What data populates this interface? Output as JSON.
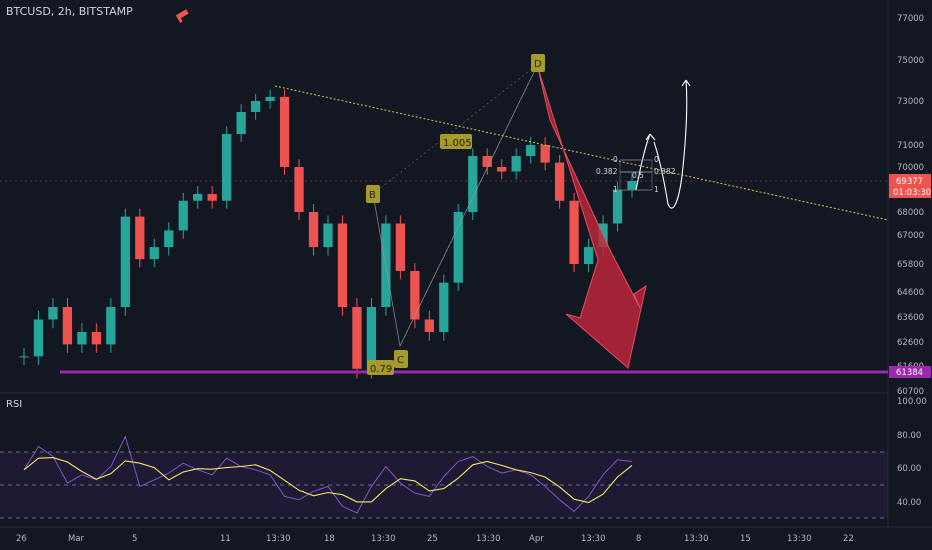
{
  "header": {
    "symbol": "BTCUSD, 2h, BITSTAMP"
  },
  "colors": {
    "background": "#131722",
    "up": "#26a69a",
    "down": "#ef5350",
    "support": "#9c27b0",
    "arrow": "#c2263a",
    "rsi_line": "#7e57c2",
    "rsi_ma": "#f5e663",
    "pattern": "#a69a2a"
  },
  "price_axis": {
    "ticks": [
      "77000",
      "75000",
      "73000",
      "71000",
      "70000",
      "68000",
      "67000",
      "65800",
      "64600",
      "63600",
      "62600",
      "61600",
      "60700"
    ],
    "current_price": "69377",
    "countdown": "01:03:30",
    "support_price": "61384"
  },
  "time_axis": {
    "ticks": [
      "26",
      "Mar",
      "5",
      "11",
      "13:30",
      "18",
      "13:30",
      "25",
      "13:30",
      "Apr",
      "13:30",
      "8",
      "13:30",
      "15",
      "13:30",
      "22"
    ]
  },
  "rsi_panel": {
    "title": "RSI",
    "ticks": [
      "100.00",
      "80.00",
      "60.00",
      "40.00"
    ]
  },
  "annotations": {
    "points": [
      "B",
      "C",
      "D"
    ],
    "retracements": [
      "0.79",
      "1.005"
    ],
    "fib_levels": [
      "0",
      "0.382",
      "1"
    ],
    "fib_right": [
      "0",
      "0.382",
      "0.5",
      "1"
    ]
  },
  "chart_data": {
    "type": "candlestick",
    "title": "BTCUSD, 2h, BITSTAMP",
    "timeframe": "2h",
    "price_ylim": [
      60700,
      77500
    ],
    "close_series": [
      {
        "date": "Feb 26",
        "close": 62000
      },
      {
        "date": "Feb 27",
        "close": 63500
      },
      {
        "date": "Feb 28",
        "close": 64000
      },
      {
        "date": "Feb 29",
        "close": 62500
      },
      {
        "date": "Mar 1",
        "close": 63000
      },
      {
        "date": "Mar 2",
        "close": 62500
      },
      {
        "date": "Mar 3",
        "close": 64000
      },
      {
        "date": "Mar 4",
        "close": 67800
      },
      {
        "date": "Mar 5",
        "close": 66000
      },
      {
        "date": "Mar 6",
        "close": 66500
      },
      {
        "date": "Mar 7",
        "close": 67200
      },
      {
        "date": "Mar 8",
        "close": 68500
      },
      {
        "date": "Mar 9",
        "close": 68800
      },
      {
        "date": "Mar 10",
        "close": 68500
      },
      {
        "date": "Mar 11",
        "close": 71500
      },
      {
        "date": "Mar 12",
        "close": 72500
      },
      {
        "date": "Mar 13",
        "close": 73000
      },
      {
        "date": "Mar 14",
        "close": 73200
      },
      {
        "date": "Mar 15",
        "close": 70000
      },
      {
        "date": "Mar 16",
        "close": 68000
      },
      {
        "date": "Mar 17",
        "close": 66500
      },
      {
        "date": "Mar 18",
        "close": 67500
      },
      {
        "date": "Mar 19",
        "close": 64000
      },
      {
        "date": "Mar 20",
        "close": 61500
      },
      {
        "date": "Mar 21",
        "close": 64000
      },
      {
        "date": "Mar 22",
        "close": 67500
      },
      {
        "date": "Mar 23",
        "close": 65500
      },
      {
        "date": "Mar 24",
        "close": 63500
      },
      {
        "date": "Mar 25",
        "close": 63000
      },
      {
        "date": "Mar 26",
        "close": 65000
      },
      {
        "date": "Mar 27",
        "close": 68000
      },
      {
        "date": "Mar 28",
        "close": 70500
      },
      {
        "date": "Mar 29",
        "close": 70000
      },
      {
        "date": "Mar 30",
        "close": 69800
      },
      {
        "date": "Mar 31",
        "close": 70500
      },
      {
        "date": "Apr 1",
        "close": 71000
      },
      {
        "date": "Apr 2",
        "close": 70200
      },
      {
        "date": "Apr 3",
        "close": 68500
      },
      {
        "date": "Apr 4",
        "close": 65800
      },
      {
        "date": "Apr 5",
        "close": 66500
      },
      {
        "date": "Apr 6",
        "close": 67500
      },
      {
        "date": "Apr 7",
        "close": 69000
      },
      {
        "date": "Apr 8",
        "close": 69377
      }
    ],
    "support_level": 61384,
    "current_price": 69377,
    "rsi": {
      "ylim": [
        20,
        100
      ],
      "levels": [
        70,
        50,
        30
      ],
      "series": [
        {
          "date": "Feb 26",
          "value": 58
        },
        {
          "date": "Feb 27",
          "value": 72
        },
        {
          "date": "Feb 28",
          "value": 66
        },
        {
          "date": "Feb 29",
          "value": 50
        },
        {
          "date": "Mar 1",
          "value": 55
        },
        {
          "date": "Mar 2",
          "value": 52
        },
        {
          "date": "Mar 3",
          "value": 60
        },
        {
          "date": "Mar 4",
          "value": 78
        },
        {
          "date": "Mar 5",
          "value": 48
        },
        {
          "date": "Mar 6",
          "value": 52
        },
        {
          "date": "Mar 7",
          "value": 56
        },
        {
          "date": "Mar 8",
          "value": 62
        },
        {
          "date": "Mar 9",
          "value": 58
        },
        {
          "date": "Mar 10",
          "value": 55
        },
        {
          "date": "Mar 11",
          "value": 65
        },
        {
          "date": "Mar 12",
          "value": 60
        },
        {
          "date": "Mar 13",
          "value": 58
        },
        {
          "date": "Mar 14",
          "value": 55
        },
        {
          "date": "Mar 15",
          "value": 42
        },
        {
          "date": "Mar 16",
          "value": 40
        },
        {
          "date": "Mar 17",
          "value": 45
        },
        {
          "date": "Mar 18",
          "value": 48
        },
        {
          "date": "Mar 19",
          "value": 36
        },
        {
          "date": "Mar 20",
          "value": 32
        },
        {
          "date": "Mar 21",
          "value": 48
        },
        {
          "date": "Mar 22",
          "value": 60
        },
        {
          "date": "Mar 23",
          "value": 50
        },
        {
          "date": "Mar 24",
          "value": 44
        },
        {
          "date": "Mar 25",
          "value": 42
        },
        {
          "date": "Mar 26",
          "value": 54
        },
        {
          "date": "Mar 27",
          "value": 63
        },
        {
          "date": "Mar 28",
          "value": 66
        },
        {
          "date": "Mar 29",
          "value": 60
        },
        {
          "date": "Mar 30",
          "value": 56
        },
        {
          "date": "Mar 31",
          "value": 58
        },
        {
          "date": "Apr 1",
          "value": 55
        },
        {
          "date": "Apr 2",
          "value": 48
        },
        {
          "date": "Apr 3",
          "value": 40
        },
        {
          "date": "Apr 4",
          "value": 33
        },
        {
          "date": "Apr 5",
          "value": 42
        },
        {
          "date": "Apr 6",
          "value": 55
        },
        {
          "date": "Apr 7",
          "value": 64
        },
        {
          "date": "Apr 8",
          "value": 63
        }
      ]
    }
  }
}
